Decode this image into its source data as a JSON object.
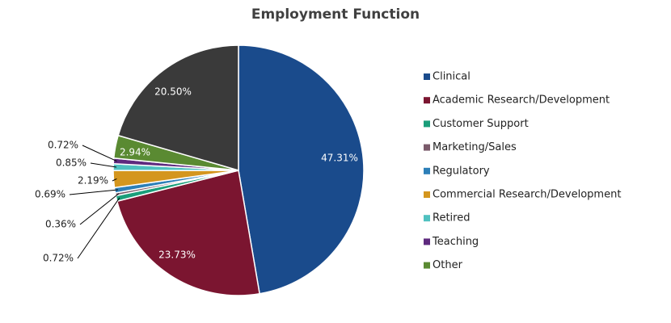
{
  "chart_data": {
    "type": "pie",
    "title": "Employment Function",
    "categories": [
      "Clinical",
      "Academic Research/Development",
      "Customer Support",
      "Marketing/Sales",
      "Regulatory",
      "Commercial Research/Development",
      "Retired",
      "Teaching",
      "Other",
      null
    ],
    "values": [
      47.31,
      23.73,
      0.72,
      0.36,
      0.69,
      2.19,
      0.85,
      0.72,
      2.94,
      20.5
    ],
    "value_labels": [
      "47.31%",
      "23.73%",
      "0.72%",
      "0.36%",
      "0.69%",
      "2.19%",
      "0.85%",
      "0.72%",
      "2.94%",
      "20.50%"
    ],
    "colors": [
      "#1a4b8c",
      "#7b1530",
      "#1a9e7a",
      "#7a5a6a",
      "#2c7fb8",
      "#d4961e",
      "#4fc1c0",
      "#5e2a7e",
      "#5a8a32",
      "#3a3a3a"
    ],
    "legend": "right"
  }
}
